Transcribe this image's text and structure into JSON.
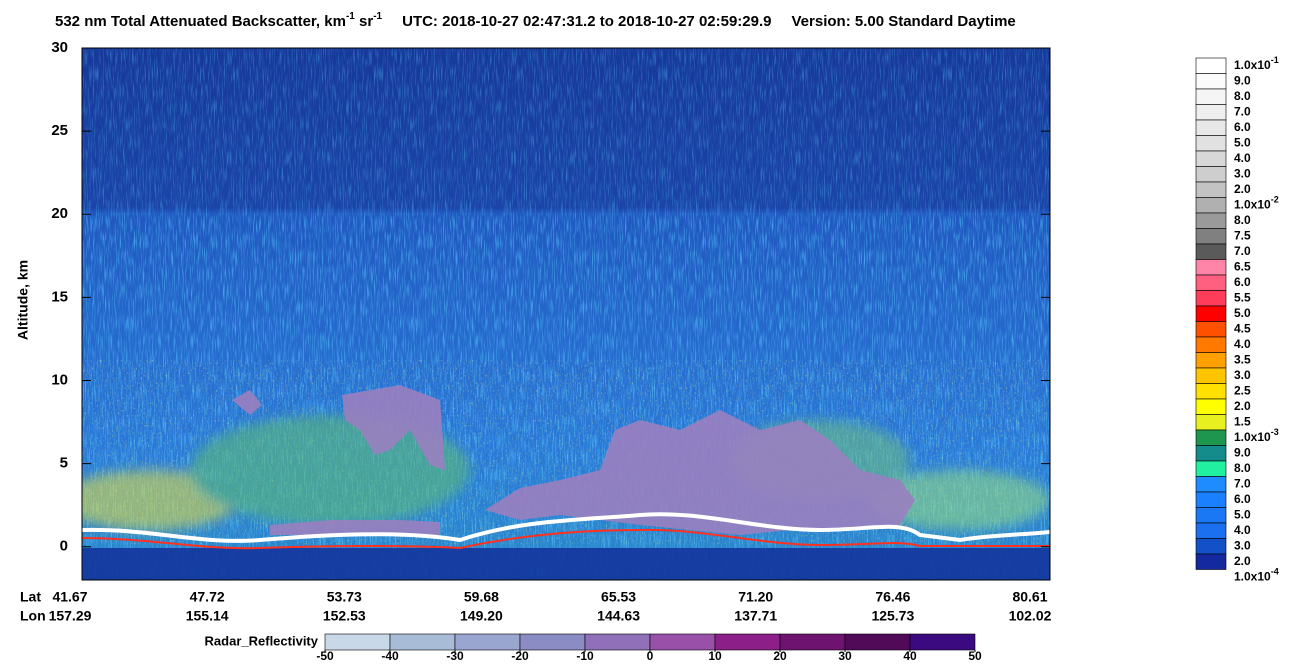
{
  "chart_data": {
    "type": "curtain",
    "title": [
      {
        "text": "532 nm Total Attenuated Backscatter, km"
      },
      {
        "text": "-1",
        "sup": true
      },
      {
        "text": " sr"
      },
      {
        "text": "-1",
        "sup": true
      },
      {
        "text": "UTC:  2018-10-27 02:47:31.2  to  2018-10-27 02:59:29.9",
        "gap": true
      },
      {
        "text": "Version: 5.00  Standard  Daytime",
        "gap": true
      }
    ],
    "ylabel": "Altitude, km",
    "ylim": [
      -2,
      30
    ],
    "yticks": [
      0,
      5,
      10,
      15,
      20,
      25,
      30
    ],
    "x_rows": [
      {
        "name": "Lat",
        "labels": [
          "41.67",
          "47.72",
          "53.73",
          "59.68",
          "65.53",
          "71.20",
          "76.46",
          "80.61"
        ]
      },
      {
        "name": "Lon",
        "labels": [
          "157.29",
          "155.14",
          "152.53",
          "149.20",
          "144.63",
          "137.71",
          "125.73",
          "102.02"
        ]
      }
    ],
    "colorbar": {
      "labels": [
        {
          "base": "1.0x10",
          "exp": "-1"
        },
        "9.0",
        "8.0",
        "7.0",
        "6.0",
        "5.0",
        "4.0",
        "3.0",
        "2.0",
        {
          "base": "1.0x10",
          "exp": "-2"
        },
        "8.0",
        "7.5",
        "7.0",
        "6.5",
        "6.0",
        "5.5",
        "5.0",
        "4.5",
        "4.0",
        "3.5",
        "3.0",
        "2.5",
        "2.0",
        "1.5",
        {
          "base": "1.0x10",
          "exp": "-3"
        },
        "9.0",
        "8.0",
        "7.0",
        "6.0",
        "5.0",
        "4.0",
        "3.0",
        "2.0",
        {
          "base": "1.0x10",
          "exp": "-4"
        }
      ],
      "colors": [
        "#ffffff",
        "#fbfbfb",
        "#f5f5f5",
        "#efefef",
        "#e8e8e8",
        "#e1e1e1",
        "#d8d8d8",
        "#cecece",
        "#c3c3c3",
        "#b0b0b0",
        "#9a9a9a",
        "#808080",
        "#5a5a5a",
        "#ff85a8",
        "#ff6080",
        "#ff3c5a",
        "#ff0000",
        "#ff5000",
        "#ff7800",
        "#ffa000",
        "#ffc400",
        "#ffe000",
        "#ffff00",
        "#e8f020",
        "#1e9650",
        "#148c8c",
        "#20f0a0",
        "#1e8cff",
        "#1a80ff",
        "#1a78f5",
        "#1a70ee",
        "#1450c8",
        "#1428a0"
      ]
    },
    "radar_colorbar": {
      "label": "Radar_Reflectivity",
      "ticks": [
        -50,
        -40,
        -30,
        -20,
        -10,
        0,
        10,
        20,
        30,
        40,
        50
      ],
      "colors": [
        "#c8d8e8",
        "#a8bcd8",
        "#98a6d0",
        "#8c8cc4",
        "#9070b8",
        "#9850a8",
        "#8c2088",
        "#6e1470",
        "#500a58",
        "#3c0a80"
      ]
    }
  }
}
